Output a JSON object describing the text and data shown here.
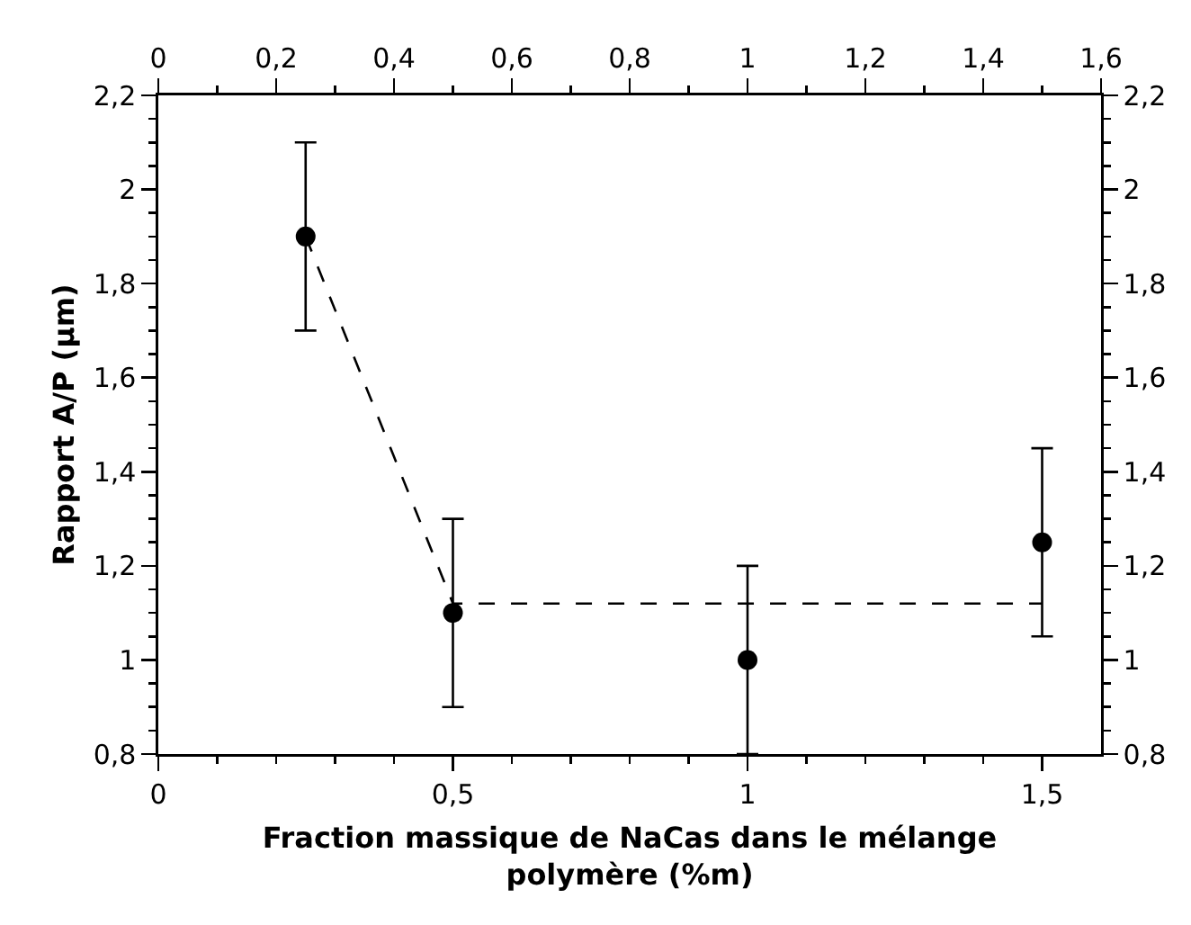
{
  "chart_data": {
    "type": "scatter",
    "xlabel": "Fraction massique de NaCas dans le mélange\npolymère (%m)",
    "ylabel": "Rapport A/P (µm)",
    "series": [
      {
        "color": "#000000",
        "x": [
          0.25,
          0.5,
          1,
          1.5
        ],
        "values": [
          1.9,
          1.1,
          1.0,
          1.25
        ],
        "errors": [
          0.2,
          0.2,
          0.2,
          0.2
        ],
        "marker": "circle"
      },
      {
        "type": "line",
        "color": "#000000",
        "x": [
          0.25,
          0.5,
          1.5
        ],
        "values": [
          1.9,
          1.12,
          1.12
        ],
        "line_style": "dashed",
        "marker": "none"
      }
    ],
    "xlim": [
      0,
      1.6
    ],
    "xticks": [
      {
        "value": 0,
        "label": "0"
      },
      {
        "value": 0.1,
        "label": null
      },
      {
        "value": 0.2,
        "label": null
      },
      {
        "value": 0.3,
        "label": null
      },
      {
        "value": 0.4,
        "label": null
      },
      {
        "value": 0.5,
        "label": "0,5"
      },
      {
        "value": 0.6,
        "label": null
      },
      {
        "value": 0.7,
        "label": null
      },
      {
        "value": 0.8,
        "label": null
      },
      {
        "value": 0.9,
        "label": null
      },
      {
        "value": 1,
        "label": "1"
      },
      {
        "value": 1.1,
        "label": null
      },
      {
        "value": 1.2,
        "label": null
      },
      {
        "value": 1.3,
        "label": null
      },
      {
        "value": 1.4,
        "label": null
      },
      {
        "value": 1.5,
        "label": "1,5"
      }
    ],
    "x2lim": [
      0,
      1.6
    ],
    "x2ticks": [
      {
        "value": 0,
        "label": "0"
      },
      {
        "value": 0.1,
        "label": null
      },
      {
        "value": 0.2,
        "label": "0,2"
      },
      {
        "value": 0.3,
        "label": null
      },
      {
        "value": 0.4,
        "label": "0,4"
      },
      {
        "value": 0.5,
        "label": null
      },
      {
        "value": 0.6,
        "label": "0,6"
      },
      {
        "value": 0.7,
        "label": null
      },
      {
        "value": 0.8,
        "label": "0,8"
      },
      {
        "value": 0.9,
        "label": null
      },
      {
        "value": 1,
        "label": "1"
      },
      {
        "value": 1.1,
        "label": null
      },
      {
        "value": 1.2,
        "label": "1,2"
      },
      {
        "value": 1.3,
        "label": null
      },
      {
        "value": 1.4,
        "label": "1,4"
      },
      {
        "value": 1.5,
        "label": null
      },
      {
        "value": 1.6,
        "label": "1,6"
      }
    ],
    "ylim": [
      0.8,
      2.2
    ],
    "yticks": [
      {
        "value": 0.8,
        "label": "0,8"
      },
      {
        "value": 0.85,
        "label": null
      },
      {
        "value": 0.9,
        "label": null
      },
      {
        "value": 0.95,
        "label": null
      },
      {
        "value": 1,
        "label": "1"
      },
      {
        "value": 1.05,
        "label": null
      },
      {
        "value": 1.1,
        "label": null
      },
      {
        "value": 1.15,
        "label": null
      },
      {
        "value": 1.2,
        "label": "1,2"
      },
      {
        "value": 1.25,
        "label": null
      },
      {
        "value": 1.3,
        "label": null
      },
      {
        "value": 1.35,
        "label": null
      },
      {
        "value": 1.4,
        "label": "1,4"
      },
      {
        "value": 1.45,
        "label": null
      },
      {
        "value": 1.5,
        "label": null
      },
      {
        "value": 1.55,
        "label": null
      },
      {
        "value": 1.6,
        "label": "1,6"
      },
      {
        "value": 1.65,
        "label": null
      },
      {
        "value": 1.7,
        "label": null
      },
      {
        "value": 1.75,
        "label": null
      },
      {
        "value": 1.8,
        "label": "1,8"
      },
      {
        "value": 1.85,
        "label": null
      },
      {
        "value": 1.9,
        "label": null
      },
      {
        "value": 1.95,
        "label": null
      },
      {
        "value": 2,
        "label": "2"
      },
      {
        "value": 2.05,
        "label": null
      },
      {
        "value": 2.1,
        "label": null
      },
      {
        "value": 2.15,
        "label": null
      },
      {
        "value": 2.2,
        "label": "2,2"
      }
    ],
    "y2lim": [
      0.8,
      2.2
    ],
    "y2ticks": [
      {
        "value": 0.8,
        "label": "0,8"
      },
      {
        "value": 0.85,
        "label": null
      },
      {
        "value": 0.9,
        "label": null
      },
      {
        "value": 0.95,
        "label": null
      },
      {
        "value": 1,
        "label": "1"
      },
      {
        "value": 1.05,
        "label": null
      },
      {
        "value": 1.1,
        "label": null
      },
      {
        "value": 1.15,
        "label": null
      },
      {
        "value": 1.2,
        "label": "1,2"
      },
      {
        "value": 1.25,
        "label": null
      },
      {
        "value": 1.3,
        "label": null
      },
      {
        "value": 1.35,
        "label": null
      },
      {
        "value": 1.4,
        "label": "1,4"
      },
      {
        "value": 1.45,
        "label": null
      },
      {
        "value": 1.5,
        "label": null
      },
      {
        "value": 1.55,
        "label": null
      },
      {
        "value": 1.6,
        "label": "1,6"
      },
      {
        "value": 1.65,
        "label": null
      },
      {
        "value": 1.7,
        "label": null
      },
      {
        "value": 1.75,
        "label": null
      },
      {
        "value": 1.8,
        "label": "1,8"
      },
      {
        "value": 1.85,
        "label": null
      },
      {
        "value": 1.9,
        "label": null
      },
      {
        "value": 1.95,
        "label": null
      },
      {
        "value": 2,
        "label": "2"
      },
      {
        "value": 2.05,
        "label": null
      },
      {
        "value": 2.1,
        "label": null
      },
      {
        "value": 2.15,
        "label": null
      },
      {
        "value": 2.2,
        "label": "2,2"
      }
    ],
    "grid": false
  }
}
